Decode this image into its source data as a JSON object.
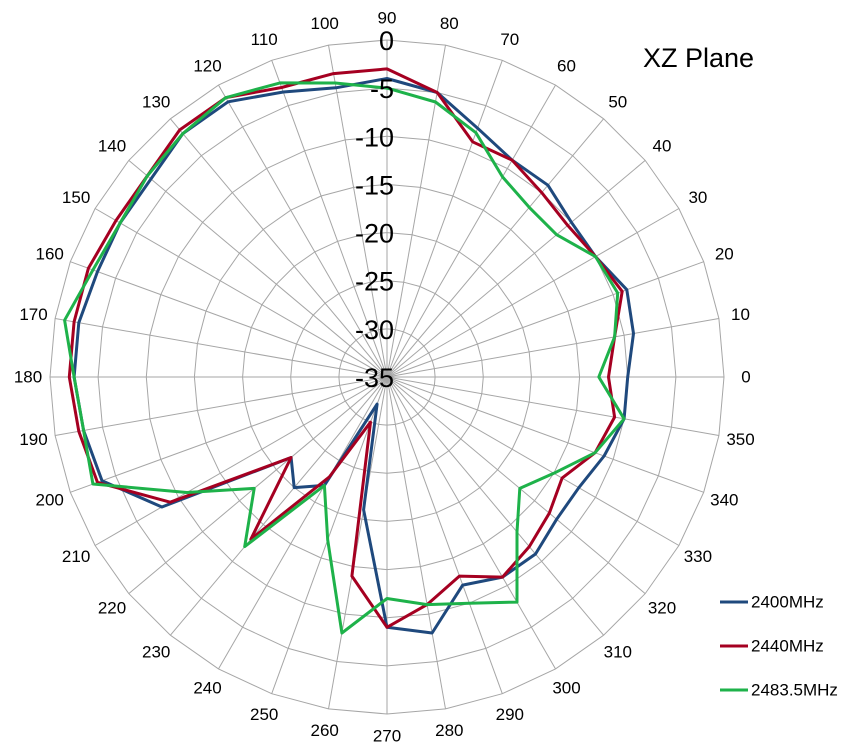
{
  "chart_data": {
    "type": "polar-line",
    "title": "XZ Plane",
    "angle_unit": "degrees",
    "angle_ticks": [
      0,
      10,
      20,
      30,
      40,
      50,
      60,
      70,
      80,
      90,
      100,
      110,
      120,
      130,
      140,
      150,
      160,
      170,
      180,
      190,
      200,
      210,
      220,
      230,
      240,
      250,
      260,
      270,
      280,
      290,
      300,
      310,
      320,
      330,
      340,
      350
    ],
    "radial_range": [
      -35,
      0
    ],
    "radial_ticks": [
      0,
      -5,
      -10,
      -15,
      -20,
      -25,
      -30,
      -35
    ],
    "grid": true,
    "legend_position": "bottom-right",
    "series": [
      {
        "name": "2400MHz",
        "color": "#1F497D",
        "angles": [
          0,
          10,
          20,
          30,
          40,
          50,
          60,
          70,
          80,
          90,
          100,
          110,
          120,
          130,
          140,
          150,
          160,
          170,
          180,
          190,
          200,
          210,
          220,
          230,
          240,
          250,
          260,
          270,
          280,
          290,
          300,
          310,
          320,
          330,
          340,
          350
        ],
        "values": [
          -10,
          -9,
          -8.5,
          -10,
          -10,
          -9,
          -9,
          -7.5,
          -5,
          -4,
          -4.5,
          -3.5,
          -2,
          -2,
          -3,
          -3,
          -3,
          -2.5,
          -2.5,
          -3,
          -3.5,
          -8,
          -22,
          -20,
          -22,
          -32,
          -21,
          -9,
          -8,
          -12,
          -11,
          -11,
          -12,
          -12,
          -11,
          -10
        ]
      },
      {
        "name": "2440MHz",
        "color": "#A50021",
        "angles": [
          0,
          10,
          20,
          30,
          40,
          50,
          60,
          70,
          80,
          90,
          100,
          110,
          120,
          130,
          140,
          150,
          160,
          170,
          180,
          190,
          200,
          210,
          220,
          230,
          240,
          250,
          260,
          270,
          280,
          290,
          300,
          310,
          320,
          330,
          340,
          350
        ],
        "values": [
          -12,
          -11,
          -9,
          -10,
          -10.5,
          -10,
          -9,
          -9,
          -5,
          -3,
          -3,
          -3,
          -1.5,
          -1.5,
          -2.5,
          -2.5,
          -2,
          -2,
          -2,
          -2.5,
          -3,
          -9,
          -22,
          -13,
          -23,
          -30,
          -14,
          -9,
          -11,
          -13,
          -11,
          -12,
          -13,
          -14,
          -12,
          -11
        ]
      },
      {
        "name": "2483.5MHz",
        "color": "#1EB24A",
        "angles": [
          0,
          10,
          20,
          30,
          40,
          50,
          60,
          70,
          80,
          90,
          100,
          110,
          120,
          130,
          140,
          150,
          160,
          170,
          180,
          190,
          200,
          210,
          220,
          230,
          240,
          250,
          260,
          270,
          280,
          290,
          300,
          310,
          320,
          330,
          340,
          350
        ],
        "values": [
          -13,
          -11,
          -9.5,
          -10,
          -12,
          -12,
          -11,
          -8,
          -6,
          -5,
          -4,
          -2.5,
          -1.5,
          -2,
          -2.5,
          -3,
          -2.5,
          -1,
          -2.5,
          -3,
          -2.5,
          -11,
          -17,
          -12,
          -22,
          -17,
          -8,
          -12,
          -11,
          -10,
          -8,
          -14,
          -17,
          -15,
          -12,
          -10
        ]
      }
    ]
  }
}
